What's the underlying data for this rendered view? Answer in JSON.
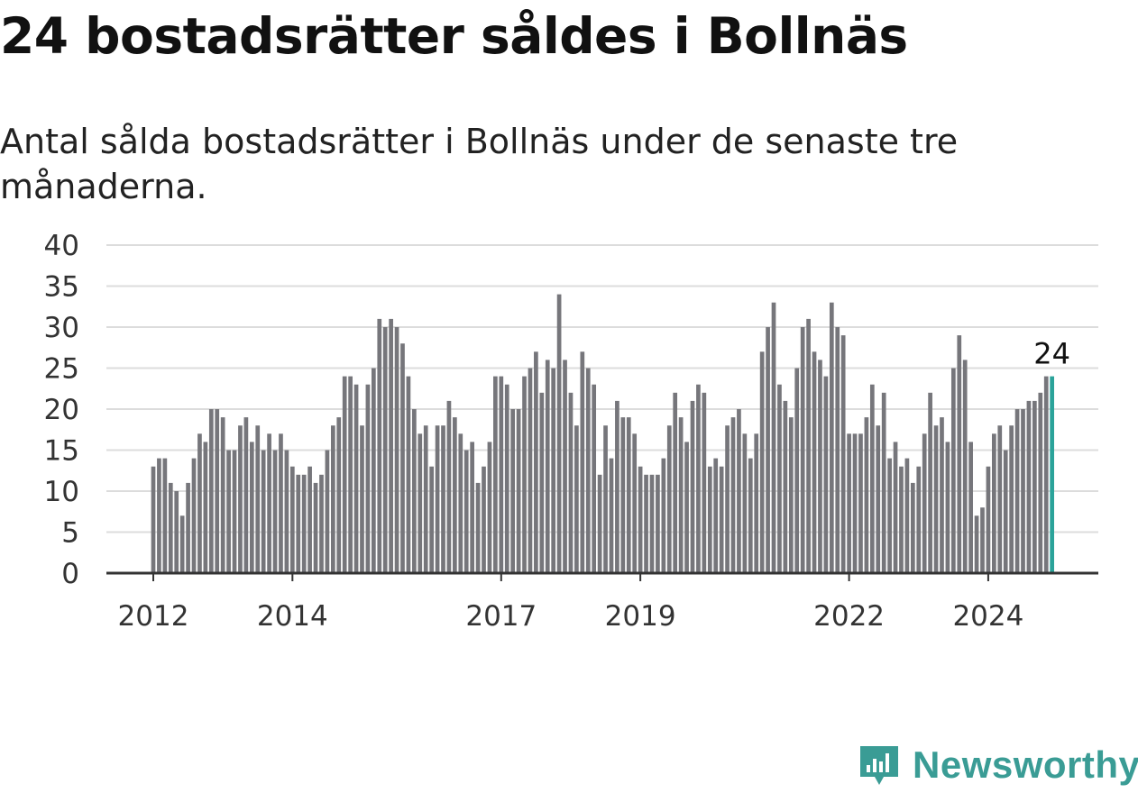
{
  "title": "24 bostadsrätter såldes i Bollnäs",
  "subtitle": "Antal sålda bostadsrätter i Bollnäs under de senaste tre månaderna.",
  "brand": {
    "name": "Newsworthy",
    "icon": "newsworthy-logo-icon",
    "color": "#3a9c95"
  },
  "chart_data": {
    "type": "bar",
    "start": "2012-01",
    "frequency": "monthly",
    "ylim": [
      0,
      40
    ],
    "yticks": [
      0,
      5,
      10,
      15,
      20,
      25,
      30,
      35,
      40
    ],
    "xticks": [
      {
        "label": "2012",
        "date": "2012-01"
      },
      {
        "label": "2014",
        "date": "2014-01"
      },
      {
        "label": "2017",
        "date": "2017-01"
      },
      {
        "label": "2019",
        "date": "2019-01"
      },
      {
        "label": "2022",
        "date": "2022-01"
      },
      {
        "label": "2024",
        "date": "2024-01"
      }
    ],
    "values": [
      13,
      14,
      14,
      11,
      10,
      7,
      11,
      14,
      17,
      16,
      20,
      20,
      19,
      15,
      15,
      18,
      19,
      16,
      18,
      15,
      17,
      15,
      17,
      15,
      13,
      12,
      12,
      13,
      11,
      12,
      15,
      18,
      19,
      24,
      24,
      23,
      18,
      23,
      25,
      31,
      30,
      31,
      30,
      28,
      24,
      20,
      17,
      18,
      13,
      18,
      18,
      21,
      19,
      17,
      15,
      16,
      11,
      13,
      16,
      24,
      24,
      23,
      20,
      20,
      24,
      25,
      27,
      22,
      26,
      25,
      34,
      26,
      22,
      18,
      27,
      25,
      23,
      12,
      18,
      14,
      21,
      19,
      19,
      17,
      13,
      12,
      12,
      12,
      14,
      18,
      22,
      19,
      16,
      21,
      23,
      22,
      13,
      14,
      13,
      18,
      19,
      20,
      17,
      14,
      17,
      27,
      30,
      33,
      23,
      21,
      19,
      25,
      30,
      31,
      27,
      26,
      24,
      33,
      30,
      29,
      17,
      17,
      17,
      19,
      23,
      18,
      22,
      14,
      16,
      13,
      14,
      11,
      13,
      17,
      22,
      18,
      19,
      16,
      25,
      29,
      26,
      16,
      7,
      8,
      13,
      17,
      18,
      15,
      18,
      20,
      20,
      21,
      21,
      22,
      24,
      24
    ],
    "bar_color": "#76767b",
    "highlight_color": "#2ba39a",
    "grid": true,
    "last_value_label": "24"
  }
}
